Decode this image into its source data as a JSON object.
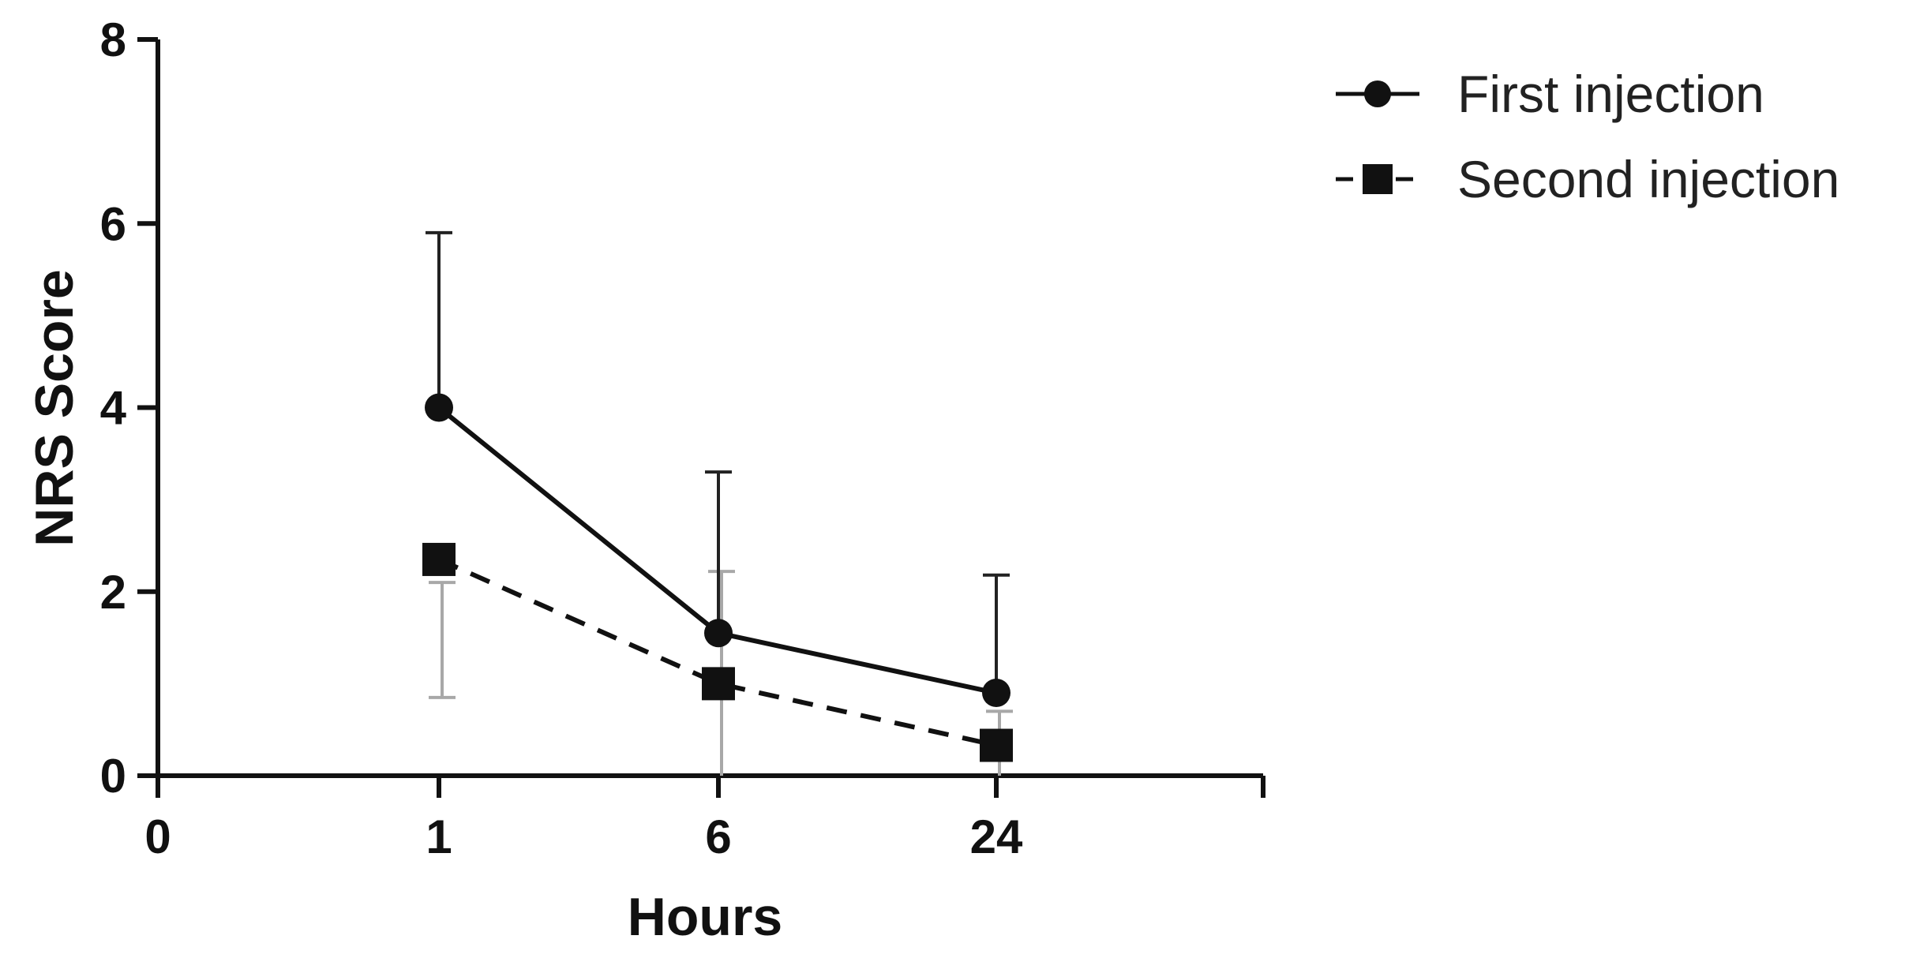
{
  "chart_data": {
    "type": "line",
    "xlabel": "Hours",
    "ylabel": "NRS Score",
    "ylim": [
      0,
      8
    ],
    "yticks": [
      "0",
      "2",
      "4",
      "6",
      "8"
    ],
    "xticks": [
      "0",
      "1",
      "6",
      "24"
    ],
    "categories": [
      "1",
      "6",
      "24"
    ],
    "grid": false,
    "legend_position": "top-right",
    "series": [
      {
        "name": "First injection",
        "marker": "circle",
        "line_style": "solid",
        "color": "#111111",
        "values": [
          4.0,
          1.55,
          0.9
        ],
        "error_upper": [
          5.9,
          3.3,
          2.18
        ]
      },
      {
        "name": "Second injection",
        "marker": "square",
        "line_style": "dashed",
        "color": "#111111",
        "error_color": "#a8a8a8",
        "values": [
          2.35,
          1.0,
          0.33
        ],
        "error_lower": [
          0.85,
          0.0,
          0.0
        ],
        "error_upper": [
          2.1,
          2.22,
          0.7
        ]
      }
    ]
  }
}
